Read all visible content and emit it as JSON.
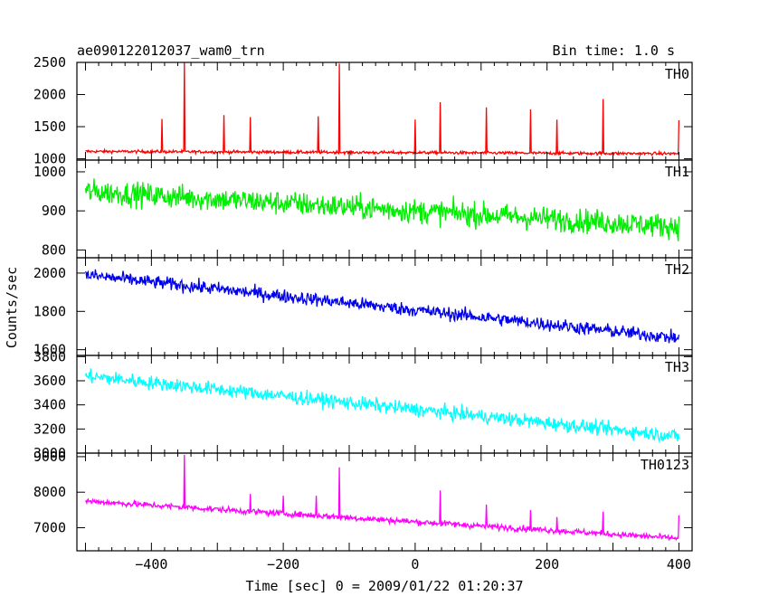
{
  "header": {
    "left": "ae090122012037_wam0_trn",
    "right": "Bin time: 1.0 s"
  },
  "ylabel": "Counts/sec",
  "xlabel": "Time [sec] 0 = 2009/01/22 01:20:37",
  "chart_data": {
    "type": "line",
    "shared_x": {
      "xlim": [
        -513,
        420
      ],
      "ticks": [
        -400,
        -200,
        0,
        200,
        400
      ],
      "range": [
        -500,
        400
      ],
      "step": 1.0
    },
    "panels": [
      {
        "name": "TH0",
        "color": "#ff0000",
        "ylim": [
          980,
          2500
        ],
        "yticks": [
          1000,
          1500,
          2000,
          2500
        ],
        "trend": {
          "start": 1115,
          "end": 1080,
          "noise": 30
        },
        "spikes": [
          [
            -384,
            1620
          ],
          [
            -350,
            2500
          ],
          [
            -290,
            1680
          ],
          [
            -250,
            1650
          ],
          [
            -147,
            1660
          ],
          [
            -115,
            2480
          ],
          [
            0,
            1610
          ],
          [
            38,
            1880
          ],
          [
            108,
            1800
          ],
          [
            175,
            1770
          ],
          [
            215,
            1610
          ],
          [
            285,
            1930
          ],
          [
            400,
            1600
          ]
        ]
      },
      {
        "name": "TH1",
        "color": "#00ee00",
        "ylim": [
          780,
          1030
        ],
        "yticks": [
          800,
          900,
          1000
        ],
        "trend": {
          "start": 950,
          "end": 860,
          "noise": 40
        },
        "spikes": []
      },
      {
        "name": "TH2",
        "color": "#0000ee",
        "ylim": [
          1570,
          2080
        ],
        "yticks": [
          1600,
          1800,
          2000
        ],
        "trend": {
          "start": 1990,
          "end": 1660,
          "noise": 45
        },
        "spikes": []
      },
      {
        "name": "TH3",
        "color": "#00ffff",
        "ylim": [
          3000,
          3810
        ],
        "yticks": [
          3000,
          3200,
          3400,
          3600,
          3800
        ],
        "trend": {
          "start": 3640,
          "end": 3140,
          "noise": 75
        },
        "spikes": []
      },
      {
        "name": "TH0123",
        "color": "#ff00ff",
        "ylim": [
          6350,
          9100
        ],
        "yticks": [
          7000,
          8000,
          9000
        ],
        "trend": {
          "start": 7750,
          "end": 6700,
          "noise": 110
        },
        "spikes": [
          [
            -350,
            9050
          ],
          [
            -115,
            8700
          ],
          [
            -250,
            7950
          ],
          [
            -200,
            7900
          ],
          [
            -150,
            7900
          ],
          [
            38,
            8050
          ],
          [
            108,
            7650
          ],
          [
            175,
            7500
          ],
          [
            215,
            7300
          ],
          [
            285,
            7450
          ],
          [
            400,
            7350
          ]
        ]
      }
    ]
  }
}
